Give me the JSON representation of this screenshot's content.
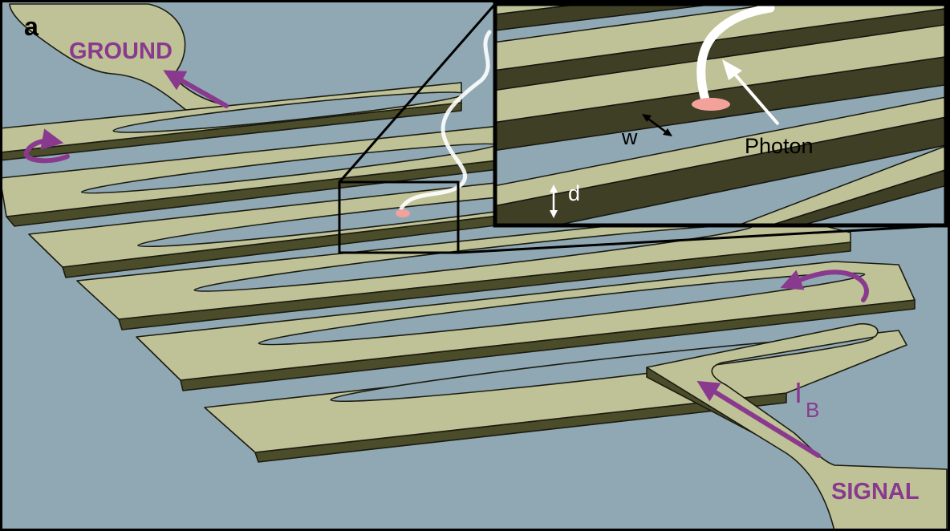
{
  "panel_label": "a",
  "labels": {
    "ground": "GROUND",
    "signal": "SIGNAL",
    "bias_current_main": "I",
    "bias_current_sub": "B",
    "photon": "Photon",
    "width": "w",
    "thickness": "d"
  },
  "colors": {
    "substrate": "#90a8b3",
    "nanowire_top": "#bfc296",
    "nanowire_side": "#4b4c2a",
    "outline": "#111111",
    "current_arrow": "#8a3a8e",
    "photon_trail": "#ffffff",
    "hotspot": "#f2a29a"
  }
}
